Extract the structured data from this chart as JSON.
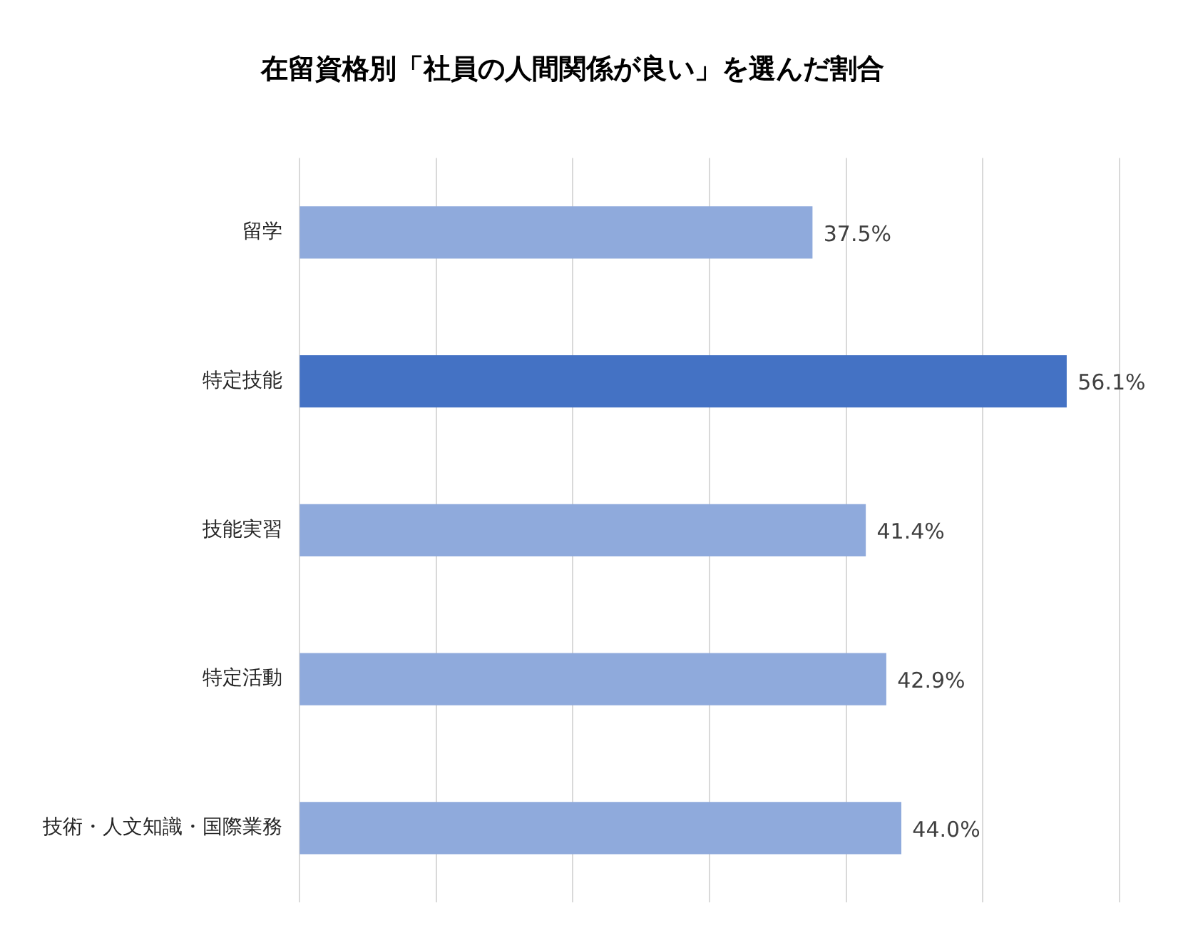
{
  "chart_data": {
    "type": "bar",
    "orientation": "horizontal",
    "title": "在留資格別「社員の人間関係が良い」を選んだ割合",
    "categories": [
      "留学",
      "特定技能",
      "技能実習",
      "特定活動",
      "技術・人文知識・国際業務"
    ],
    "values": [
      37.5,
      56.1,
      41.4,
      42.9,
      44.0
    ],
    "colors": [
      "#8faadc",
      "#4472c4",
      "#8faadc",
      "#8faadc",
      "#8faadc"
    ],
    "value_labels": [
      "37.5%",
      "56.1%",
      "41.4%",
      "42.9%",
      "44.0%"
    ],
    "xlim": [
      0,
      60
    ],
    "xticks": [
      {
        "value": 0,
        "label": null
      },
      {
        "value": 10,
        "label": null
      },
      {
        "value": 20,
        "label": null
      },
      {
        "value": 30,
        "label": null
      },
      {
        "value": 40,
        "label": null
      },
      {
        "value": 50,
        "label": null
      },
      {
        "value": 60,
        "label": null
      }
    ],
    "grid": "x",
    "tick_labels": "y",
    "legend": false
  }
}
